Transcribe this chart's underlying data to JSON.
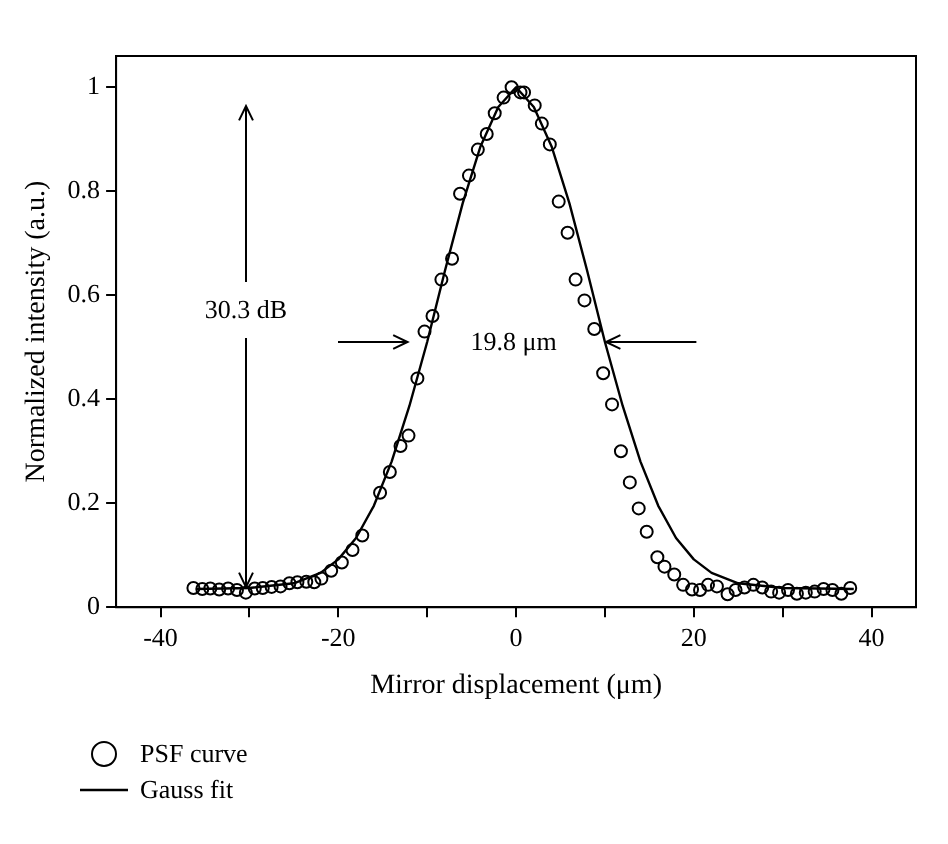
{
  "chart_data": {
    "type": "scatter",
    "xlabel": "Mirror displacement (μm)",
    "ylabel": "Normalized intensity (a.u.)",
    "xlim": [
      -45,
      45
    ],
    "ylim": [
      0,
      1.06
    ],
    "xticks": [
      -40,
      {
        "value": -30,
        "label": null
      },
      -20,
      {
        "value": -10,
        "label": null
      },
      0,
      {
        "value": 10,
        "label": null
      },
      20,
      {
        "value": 30,
        "label": null
      },
      40
    ],
    "yticks": [
      0,
      0.2,
      0.4,
      0.6,
      0.8,
      1
    ],
    "grid": false,
    "legend": "bottom left",
    "annotations": [
      {
        "text": "30.3 dB",
        "x": -30.4,
        "y": 0.028
      },
      "19.8 μm"
    ],
    "series": [
      {
        "name": "PSF curve",
        "type": "scatter",
        "marker": "circle",
        "color": "#000000",
        "x": [
          -36.3,
          -35.3,
          -34.4,
          -33.4,
          -32.4,
          -31.4,
          -30.4,
          -29.4,
          -28.5,
          -27.5,
          -26.5,
          -25.5,
          -24.6,
          -23.6,
          -22.7,
          -21.9,
          -20.8,
          -19.6,
          -18.4,
          -17.3,
          -15.3,
          -14.2,
          -13,
          -12.1,
          -11.1,
          -10.3,
          -9.4,
          -8.4,
          -7.2,
          -6.3,
          -5.3,
          -4.3,
          -3.3,
          -2.4,
          -1.4,
          -0.5,
          0.5,
          0.9,
          2.1,
          2.9,
          3.8,
          4.8,
          5.8,
          6.7,
          7.7,
          8.8,
          9.8,
          10.8,
          11.8,
          12.8,
          13.8,
          14.7,
          15.9,
          16.7,
          17.8,
          18.8,
          19.8,
          20.7,
          21.6,
          22.6,
          23.8,
          24.7,
          25.7,
          26.7,
          27.7,
          28.7,
          29.6,
          30.6,
          31.6,
          32.6,
          33.6,
          34.6,
          35.6,
          36.6,
          37.6
        ],
        "values": [
          0.037,
          0.035,
          0.036,
          0.034,
          0.036,
          0.033,
          0.028,
          0.036,
          0.037,
          0.039,
          0.04,
          0.046,
          0.048,
          0.049,
          0.048,
          0.055,
          0.07,
          0.086,
          0.11,
          0.138,
          0.22,
          0.26,
          0.31,
          0.33,
          0.44,
          0.53,
          0.56,
          0.63,
          0.67,
          0.795,
          0.83,
          0.88,
          0.91,
          0.95,
          0.98,
          1.0,
          0.99,
          0.99,
          0.965,
          0.93,
          0.89,
          0.78,
          0.72,
          0.63,
          0.59,
          0.535,
          0.45,
          0.39,
          0.3,
          0.24,
          0.19,
          0.145,
          0.096,
          0.078,
          0.063,
          0.043,
          0.034,
          0.033,
          0.043,
          0.04,
          0.025,
          0.033,
          0.038,
          0.043,
          0.038,
          0.03,
          0.028,
          0.033,
          0.026,
          0.028,
          0.03,
          0.035,
          0.033,
          0.026,
          0.037
        ]
      },
      {
        "name": "Gauss fit",
        "type": "line",
        "marker": "none",
        "line_style": "solid",
        "color": "#000000",
        "x": [
          -36,
          -30,
          -25,
          -22,
          -20,
          -18,
          -16,
          -14,
          -12,
          -10,
          -8,
          -6,
          -4,
          -2,
          0,
          2,
          4,
          6,
          8,
          10,
          12,
          14,
          16,
          18,
          20,
          22,
          25,
          30,
          38
        ],
        "values": [
          0.035,
          0.037,
          0.046,
          0.066,
          0.092,
          0.133,
          0.195,
          0.28,
          0.387,
          0.51,
          0.647,
          0.777,
          0.886,
          0.962,
          1.0,
          0.962,
          0.886,
          0.777,
          0.647,
          0.51,
          0.387,
          0.28,
          0.195,
          0.133,
          0.092,
          0.066,
          0.046,
          0.037,
          0.035
        ]
      }
    ]
  }
}
